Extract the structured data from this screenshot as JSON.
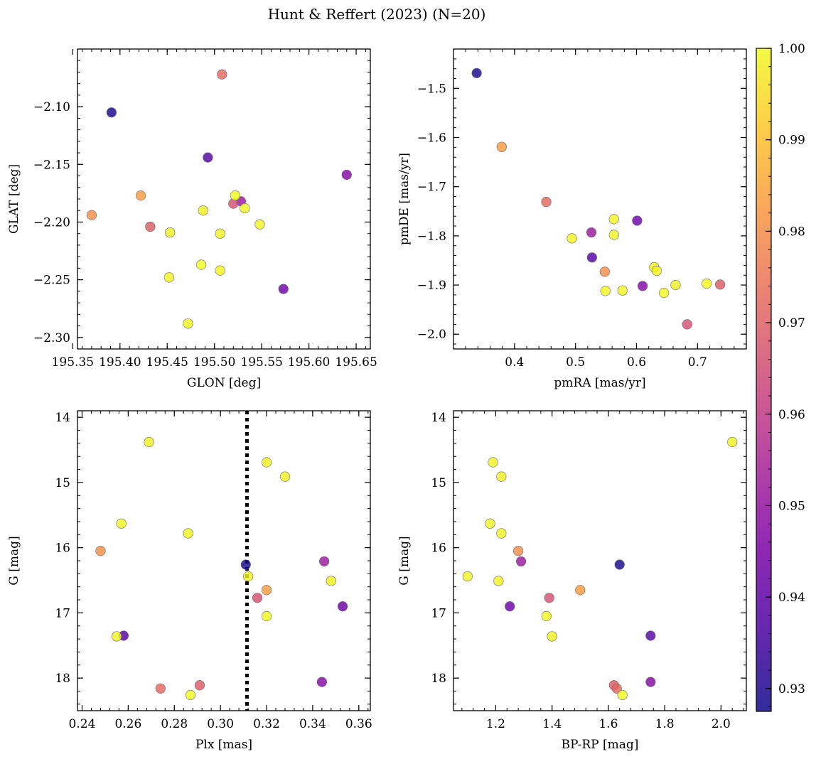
{
  "figure": {
    "title": "Hunt & Reffert (2023) (N=20)",
    "colormap": "plasma",
    "colorbar": {
      "range": [
        0.9275,
        1.0
      ],
      "ticks": [
        0.93,
        0.94,
        0.95,
        0.96,
        0.97,
        0.98,
        0.99,
        1.0
      ],
      "tick_labels": [
        "0.93",
        "0.94",
        "0.95",
        "0.96",
        "0.97",
        "0.98",
        "0.99",
        "1.00"
      ]
    }
  },
  "stars": [
    {
      "glon": 195.391,
      "glat": -2.105,
      "pmra": 0.338,
      "pmde": -1.469,
      "plx": 0.311,
      "g": 16.26,
      "bprp": 1.64,
      "prob": 0.929
    },
    {
      "glon": 195.493,
      "glat": -2.144,
      "pmra": 0.527,
      "pmde": -1.844,
      "plx": 0.258,
      "g": 17.35,
      "bprp": 1.75,
      "prob": 0.938
    },
    {
      "glon": 195.573,
      "glat": -2.258,
      "pmra": 0.601,
      "pmde": -1.769,
      "plx": 0.353,
      "g": 16.9,
      "bprp": 1.25,
      "prob": 0.942
    },
    {
      "glon": 195.64,
      "glat": -2.159,
      "pmra": 0.61,
      "pmde": -1.902,
      "plx": 0.344,
      "g": 18.06,
      "bprp": 1.75,
      "prob": 0.947
    },
    {
      "glon": 195.528,
      "glat": -2.182,
      "pmra": 0.526,
      "pmde": -1.793,
      "plx": 0.345,
      "g": 16.21,
      "bprp": 1.29,
      "prob": 0.951
    },
    {
      "glon": 195.52,
      "glat": -2.184,
      "pmra": 0.683,
      "pmde": -1.98,
      "plx": 0.316,
      "g": 16.77,
      "bprp": 1.39,
      "prob": 0.966
    },
    {
      "glon": 195.432,
      "glat": -2.204,
      "pmra": 0.737,
      "pmde": -1.899,
      "plx": 0.291,
      "g": 18.11,
      "bprp": 1.62,
      "prob": 0.969
    },
    {
      "glon": 195.508,
      "glat": -2.072,
      "pmra": 0.452,
      "pmde": -1.731,
      "plx": 0.274,
      "g": 18.16,
      "bprp": 1.63,
      "prob": 0.972
    },
    {
      "glon": 195.37,
      "glat": -2.194,
      "pmra": 0.548,
      "pmde": -1.873,
      "plx": 0.248,
      "g": 16.05,
      "bprp": 1.28,
      "prob": 0.98
    },
    {
      "glon": 195.422,
      "glat": -2.177,
      "pmra": 0.379,
      "pmde": -1.619,
      "plx": 0.32,
      "g": 16.65,
      "bprp": 1.5,
      "prob": 0.983
    },
    {
      "glon": 195.453,
      "glat": -2.209,
      "pmra": 0.494,
      "pmde": -1.805,
      "plx": 0.269,
      "g": 14.38,
      "bprp": 2.04,
      "prob": 0.999
    },
    {
      "glon": 195.452,
      "glat": -2.248,
      "pmra": 0.563,
      "pmde": -1.766,
      "plx": 0.32,
      "g": 14.69,
      "bprp": 1.19,
      "prob": 0.999
    },
    {
      "glon": 195.488,
      "glat": -2.19,
      "pmra": 0.563,
      "pmde": -1.798,
      "plx": 0.328,
      "g": 14.91,
      "bprp": 1.22,
      "prob": 0.999
    },
    {
      "glon": 195.522,
      "glat": -2.177,
      "pmra": 0.549,
      "pmde": -1.912,
      "plx": 0.257,
      "g": 15.63,
      "bprp": 1.18,
      "prob": 1.0
    },
    {
      "glon": 195.532,
      "glat": -2.188,
      "pmra": 0.577,
      "pmde": -1.911,
      "plx": 0.286,
      "g": 15.78,
      "bprp": 1.22,
      "prob": 1.0
    },
    {
      "glon": 195.506,
      "glat": -2.21,
      "pmra": 0.629,
      "pmde": -1.864,
      "plx": 0.312,
      "g": 16.44,
      "bprp": 1.1,
      "prob": 0.999
    },
    {
      "glon": 195.548,
      "glat": -2.202,
      "pmra": 0.633,
      "pmde": -1.871,
      "plx": 0.348,
      "g": 16.51,
      "bprp": 1.21,
      "prob": 0.999
    },
    {
      "glon": 195.486,
      "glat": -2.237,
      "pmra": 0.645,
      "pmde": -1.916,
      "plx": 0.32,
      "g": 17.05,
      "bprp": 1.38,
      "prob": 1.0
    },
    {
      "glon": 195.506,
      "glat": -2.242,
      "pmra": 0.664,
      "pmde": -1.9,
      "plx": 0.255,
      "g": 17.36,
      "bprp": 1.4,
      "prob": 0.999
    },
    {
      "glon": 195.472,
      "glat": -2.288,
      "pmra": 0.715,
      "pmde": -1.897,
      "plx": 0.287,
      "g": 18.26,
      "bprp": 1.65,
      "prob": 1.0
    }
  ],
  "chart_data": [
    {
      "type": "scatter",
      "xlabel": "GLON [deg]",
      "ylabel": "GLAT [deg]",
      "x_field": "glon",
      "y_field": "glat",
      "color_field": "prob",
      "xlim": [
        195.355,
        195.665
      ],
      "ylim": [
        -2.31,
        -2.05
      ],
      "xticks": [
        195.35,
        195.4,
        195.45,
        195.5,
        195.55,
        195.6,
        195.65
      ],
      "xtick_labels": [
        "195.35",
        "195.40",
        "195.45",
        "195.50",
        "195.55",
        "195.60",
        "195.65"
      ],
      "yticks": [
        -2.3,
        -2.25,
        -2.2,
        -2.15,
        -2.1
      ],
      "ytick_labels": [
        "−2.30",
        "−2.25",
        "−2.20",
        "−2.15",
        "−2.10"
      ],
      "y_inverted": false
    },
    {
      "type": "scatter",
      "xlabel": "pmRA [mas/yr]",
      "ylabel": "pmDE [mas/yr]",
      "x_field": "pmra",
      "y_field": "pmde",
      "color_field": "prob",
      "xlim": [
        0.3,
        0.78
      ],
      "ylim": [
        -2.03,
        -1.42
      ],
      "xticks": [
        0.4,
        0.5,
        0.6,
        0.7
      ],
      "xtick_labels": [
        "0.4",
        "0.5",
        "0.6",
        "0.7"
      ],
      "yticks": [
        -2.0,
        -1.9,
        -1.8,
        -1.7,
        -1.6,
        -1.5
      ],
      "ytick_labels": [
        "−2.0",
        "−1.9",
        "−1.8",
        "−1.7",
        "−1.6",
        "−1.5"
      ],
      "y_inverted": false
    },
    {
      "type": "scatter",
      "xlabel": "Plx [mas]",
      "ylabel": "G [mag]",
      "x_field": "plx",
      "y_field": "g",
      "color_field": "prob",
      "xlim": [
        0.238,
        0.365
      ],
      "ylim": [
        18.5,
        13.9
      ],
      "xticks": [
        0.24,
        0.26,
        0.28,
        0.3,
        0.32,
        0.34,
        0.36
      ],
      "xtick_labels": [
        "0.24",
        "0.26",
        "0.28",
        "0.30",
        "0.32",
        "0.34",
        "0.36"
      ],
      "yticks": [
        14,
        15,
        16,
        17,
        18
      ],
      "ytick_labels": [
        "14",
        "15",
        "16",
        "17",
        "18"
      ],
      "y_inverted": true,
      "vline": 0.3115
    },
    {
      "type": "scatter",
      "xlabel": "BP-RP [mag]",
      "ylabel": "G [mag]",
      "x_field": "bprp",
      "y_field": "g",
      "color_field": "prob",
      "xlim": [
        1.05,
        2.09
      ],
      "ylim": [
        18.5,
        13.9
      ],
      "xticks": [
        1.2,
        1.4,
        1.6,
        1.8,
        2.0
      ],
      "xtick_labels": [
        "1.2",
        "1.4",
        "1.6",
        "1.8",
        "2.0"
      ],
      "yticks": [
        14,
        15,
        16,
        17,
        18
      ],
      "ytick_labels": [
        "14",
        "15",
        "16",
        "17",
        "18"
      ],
      "y_inverted": true
    }
  ]
}
